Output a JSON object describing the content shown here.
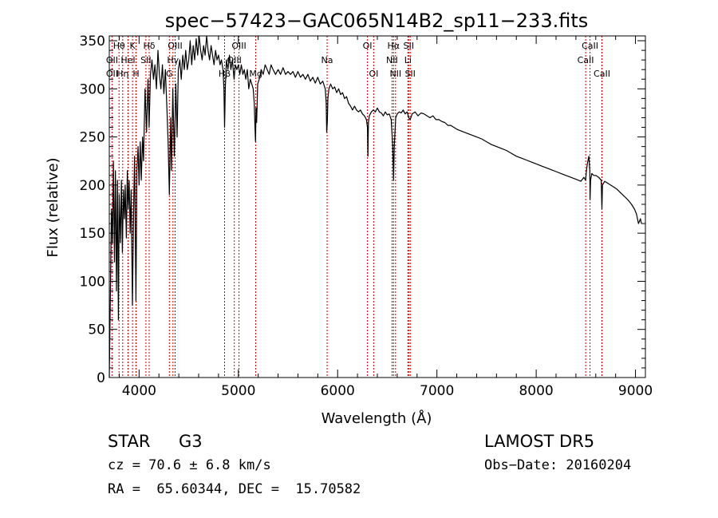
{
  "chart_data": {
    "type": "line",
    "title": "spec−57423−GAC065N14B2_sp11−233.fits",
    "xlabel": "Wavelength (Å)",
    "ylabel": "Flux (relative)",
    "xlim": [
      3700,
      9100
    ],
    "ylim": [
      0,
      355
    ],
    "xticks": [
      4000,
      5000,
      6000,
      7000,
      8000,
      9000
    ],
    "yticks": [
      0,
      50,
      100,
      150,
      200,
      250,
      300,
      350
    ],
    "grid": false,
    "line_color": "#000000",
    "marker_line_color": "#cc0000",
    "series": [
      {
        "values": [
          [
            3700,
            0
          ],
          [
            3712,
            95
          ],
          [
            3722,
            175
          ],
          [
            3732,
            140
          ],
          [
            3742,
            225
          ],
          [
            3752,
            120
          ],
          [
            3762,
            215
          ],
          [
            3772,
            90
          ],
          [
            3782,
            205
          ],
          [
            3792,
            60
          ],
          [
            3800,
            190
          ],
          [
            3812,
            140
          ],
          [
            3822,
            205
          ],
          [
            3832,
            130
          ],
          [
            3842,
            195
          ],
          [
            3852,
            165
          ],
          [
            3860,
            200
          ],
          [
            3872,
            145
          ],
          [
            3882,
            215
          ],
          [
            3890,
            175
          ],
          [
            3900,
            205
          ],
          [
            3910,
            150
          ],
          [
            3920,
            195
          ],
          [
            3933,
            75
          ],
          [
            3945,
            175
          ],
          [
            3955,
            230
          ],
          [
            3968,
            80
          ],
          [
            3978,
            215
          ],
          [
            3990,
            240
          ],
          [
            4000,
            200
          ],
          [
            4012,
            245
          ],
          [
            4022,
            205
          ],
          [
            4035,
            250
          ],
          [
            4045,
            225
          ],
          [
            4060,
            300
          ],
          [
            4075,
            255
          ],
          [
            4090,
            310
          ],
          [
            4101,
            260
          ],
          [
            4115,
            315
          ],
          [
            4130,
            330
          ],
          [
            4145,
            310
          ],
          [
            4160,
            325
          ],
          [
            4175,
            300
          ],
          [
            4190,
            340
          ],
          [
            4205,
            315
          ],
          [
            4220,
            300
          ],
          [
            4235,
            325
          ],
          [
            4250,
            295
          ],
          [
            4265,
            320
          ],
          [
            4280,
            280
          ],
          [
            4292,
            245
          ],
          [
            4305,
            190
          ],
          [
            4318,
            270
          ],
          [
            4327,
            215
          ],
          [
            4340,
            300
          ],
          [
            4355,
            230
          ],
          [
            4370,
            305
          ],
          [
            4383,
            250
          ],
          [
            4395,
            320
          ],
          [
            4410,
            330
          ],
          [
            4425,
            310
          ],
          [
            4440,
            335
          ],
          [
            4455,
            320
          ],
          [
            4470,
            340
          ],
          [
            4485,
            320
          ],
          [
            4500,
            330
          ],
          [
            4515,
            350
          ],
          [
            4530,
            325
          ],
          [
            4545,
            345
          ],
          [
            4560,
            330
          ],
          [
            4575,
            352
          ],
          [
            4590,
            335
          ],
          [
            4605,
            355
          ],
          [
            4620,
            340
          ],
          [
            4635,
            330
          ],
          [
            4650,
            345
          ],
          [
            4665,
            335
          ],
          [
            4680,
            355
          ],
          [
            4695,
            340
          ],
          [
            4710,
            330
          ],
          [
            4725,
            345
          ],
          [
            4740,
            335
          ],
          [
            4755,
            325
          ],
          [
            4770,
            340
          ],
          [
            4785,
            330
          ],
          [
            4800,
            335
          ],
          [
            4815,
            325
          ],
          [
            4830,
            330
          ],
          [
            4845,
            320
          ],
          [
            4855,
            300
          ],
          [
            4861,
            260
          ],
          [
            4868,
            300
          ],
          [
            4880,
            330
          ],
          [
            4895,
            320
          ],
          [
            4910,
            335
          ],
          [
            4925,
            320
          ],
          [
            4940,
            330
          ],
          [
            4957,
            310
          ],
          [
            4970,
            325
          ],
          [
            4985,
            320
          ],
          [
            5000,
            325
          ],
          [
            5015,
            315
          ],
          [
            5030,
            325
          ],
          [
            5045,
            315
          ],
          [
            5060,
            320
          ],
          [
            5075,
            310
          ],
          [
            5090,
            320
          ],
          [
            5105,
            300
          ],
          [
            5120,
            310
          ],
          [
            5135,
            305
          ],
          [
            5150,
            300
          ],
          [
            5160,
            285
          ],
          [
            5167,
            260
          ],
          [
            5173,
            245
          ],
          [
            5178,
            280
          ],
          [
            5184,
            265
          ],
          [
            5195,
            305
          ],
          [
            5210,
            310
          ],
          [
            5230,
            320
          ],
          [
            5250,
            315
          ],
          [
            5270,
            325
          ],
          [
            5290,
            320
          ],
          [
            5310,
            315
          ],
          [
            5330,
            325
          ],
          [
            5350,
            320
          ],
          [
            5375,
            315
          ],
          [
            5400,
            320
          ],
          [
            5425,
            315
          ],
          [
            5450,
            322
          ],
          [
            5475,
            315
          ],
          [
            5500,
            318
          ],
          [
            5525,
            315
          ],
          [
            5550,
            318
          ],
          [
            5575,
            312
          ],
          [
            5600,
            318
          ],
          [
            5625,
            312
          ],
          [
            5650,
            315
          ],
          [
            5675,
            310
          ],
          [
            5700,
            315
          ],
          [
            5725,
            308
          ],
          [
            5750,
            312
          ],
          [
            5775,
            306
          ],
          [
            5800,
            312
          ],
          [
            5825,
            305
          ],
          [
            5850,
            308
          ],
          [
            5875,
            300
          ],
          [
            5885,
            285
          ],
          [
            5890,
            255
          ],
          [
            5896,
            265
          ],
          [
            5902,
            290
          ],
          [
            5912,
            300
          ],
          [
            5930,
            305
          ],
          [
            5950,
            300
          ],
          [
            5970,
            302
          ],
          [
            5990,
            296
          ],
          [
            6010,
            300
          ],
          [
            6030,
            294
          ],
          [
            6050,
            296
          ],
          [
            6070,
            290
          ],
          [
            6090,
            292
          ],
          [
            6110,
            285
          ],
          [
            6130,
            282
          ],
          [
            6150,
            278
          ],
          [
            6170,
            282
          ],
          [
            6190,
            278
          ],
          [
            6210,
            276
          ],
          [
            6230,
            278
          ],
          [
            6250,
            274
          ],
          [
            6270,
            272
          ],
          [
            6290,
            268
          ],
          [
            6300,
            260
          ],
          [
            6305,
            230
          ],
          [
            6310,
            265
          ],
          [
            6320,
            272
          ],
          [
            6340,
            276
          ],
          [
            6360,
            278
          ],
          [
            6380,
            276
          ],
          [
            6400,
            280
          ],
          [
            6420,
            276
          ],
          [
            6440,
            275
          ],
          [
            6460,
            272
          ],
          [
            6480,
            276
          ],
          [
            6500,
            273
          ],
          [
            6520,
            274
          ],
          [
            6540,
            268
          ],
          [
            6555,
            240
          ],
          [
            6563,
            205
          ],
          [
            6570,
            240
          ],
          [
            6585,
            270
          ],
          [
            6600,
            274
          ],
          [
            6620,
            276
          ],
          [
            6640,
            275
          ],
          [
            6660,
            278
          ],
          [
            6680,
            274
          ],
          [
            6700,
            276
          ],
          [
            6717,
            270
          ],
          [
            6731,
            268
          ],
          [
            6750,
            274
          ],
          [
            6780,
            276
          ],
          [
            6810,
            272
          ],
          [
            6840,
            275
          ],
          [
            6870,
            274
          ],
          [
            6900,
            272
          ],
          [
            6930,
            270
          ],
          [
            6960,
            272
          ],
          [
            6990,
            268
          ],
          [
            7020,
            268
          ],
          [
            7050,
            266
          ],
          [
            7080,
            265
          ],
          [
            7110,
            262
          ],
          [
            7140,
            262
          ],
          [
            7170,
            260
          ],
          [
            7200,
            258
          ],
          [
            7250,
            256
          ],
          [
            7300,
            254
          ],
          [
            7350,
            252
          ],
          [
            7400,
            250
          ],
          [
            7450,
            248
          ],
          [
            7500,
            245
          ],
          [
            7550,
            242
          ],
          [
            7600,
            240
          ],
          [
            7650,
            238
          ],
          [
            7700,
            236
          ],
          [
            7750,
            233
          ],
          [
            7800,
            230
          ],
          [
            7850,
            228
          ],
          [
            7900,
            226
          ],
          [
            7950,
            224
          ],
          [
            8000,
            222
          ],
          [
            8050,
            220
          ],
          [
            8100,
            218
          ],
          [
            8150,
            216
          ],
          [
            8200,
            214
          ],
          [
            8250,
            212
          ],
          [
            8300,
            210
          ],
          [
            8350,
            208
          ],
          [
            8400,
            206
          ],
          [
            8450,
            204
          ],
          [
            8480,
            208
          ],
          [
            8498,
            205
          ],
          [
            8505,
            214
          ],
          [
            8515,
            222
          ],
          [
            8530,
            230
          ],
          [
            8540,
            215
          ],
          [
            8542,
            185
          ],
          [
            8548,
            205
          ],
          [
            8560,
            212
          ],
          [
            8580,
            210
          ],
          [
            8600,
            210
          ],
          [
            8630,
            208
          ],
          [
            8655,
            205
          ],
          [
            8662,
            175
          ],
          [
            8668,
            200
          ],
          [
            8690,
            204
          ],
          [
            8720,
            202
          ],
          [
            8750,
            200
          ],
          [
            8780,
            198
          ],
          [
            8810,
            196
          ],
          [
            8840,
            193
          ],
          [
            8870,
            190
          ],
          [
            8900,
            187
          ],
          [
            8930,
            184
          ],
          [
            8960,
            180
          ],
          [
            8990,
            175
          ],
          [
            9010,
            170
          ],
          [
            9030,
            160
          ],
          [
            9050,
            165
          ],
          [
            9060,
            160
          ]
        ]
      }
    ],
    "line_markers": [
      {
        "label": "Hθ",
        "x": 3798,
        "row": 0
      },
      {
        "label": "OII",
        "x": 3727,
        "row": 1
      },
      {
        "label": "OII",
        "x": 3727,
        "row": 2
      },
      {
        "label": "K",
        "x": 3934,
        "row": 0
      },
      {
        "label": "HeI",
        "x": 3889,
        "row": 1
      },
      {
        "label": "Hη",
        "x": 3835,
        "row": 2
      },
      {
        "label": "SII",
        "x": 4069,
        "row": 1
      },
      {
        "label": "H",
        "x": 3969,
        "row": 2
      },
      {
        "label": "Hδ",
        "x": 4102,
        "row": 0
      },
      {
        "label": "OIII",
        "x": 4363,
        "row": 0
      },
      {
        "label": "Hγ",
        "x": 4341,
        "row": 1
      },
      {
        "label": "G",
        "x": 4305,
        "row": 2
      },
      {
        "label": "OIII",
        "x": 5007,
        "row": 0
      },
      {
        "label": "OIII",
        "x": 4959,
        "row": 1
      },
      {
        "label": "Hβ",
        "x": 4861,
        "row": 2
      },
      {
        "label": "Mg",
        "x": 5175,
        "row": 2
      },
      {
        "label": "Na",
        "x": 5894,
        "row": 1
      },
      {
        "label": "OI",
        "x": 6300,
        "row": 0
      },
      {
        "label": "OI",
        "x": 6363,
        "row": 2
      },
      {
        "label": "Hα",
        "x": 6563,
        "row": 0
      },
      {
        "label": "NII",
        "x": 6548,
        "row": 1
      },
      {
        "label": "NII",
        "x": 6583,
        "row": 2
      },
      {
        "label": "SII",
        "x": 6716,
        "row": 0
      },
      {
        "label": "Li",
        "x": 6708,
        "row": 1
      },
      {
        "label": "SII",
        "x": 6731,
        "row": 2
      },
      {
        "label": "CaII",
        "x": 8542,
        "row": 0
      },
      {
        "label": "CaII",
        "x": 8498,
        "row": 1
      },
      {
        "label": "CaII",
        "x": 8662,
        "row": 2
      }
    ]
  },
  "info": {
    "class_label": "STAR",
    "subclass": "G3",
    "survey": "LAMOST DR5",
    "redshift_line": "cz = 70.6 ± 6.8 km/s",
    "obs_date": "Obs−Date: 20160204",
    "coords": "RA =  65.60344, DEC =  15.70582"
  }
}
